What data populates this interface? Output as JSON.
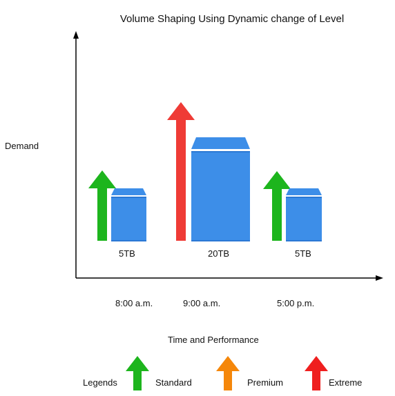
{
  "title": "Volume Shaping Using Dynamic change of Level",
  "y_axis_label": "Demand",
  "x_axis_label": "Time and Performance",
  "groups": [
    {
      "time": "8:00 a.m.",
      "size_label": "5TB",
      "arrow_level": "Standard",
      "arrow_color": "#1db51d"
    },
    {
      "time": "9:00 a.m.",
      "size_label": "20TB",
      "arrow_level": "Extreme",
      "arrow_color": "#ef3b36"
    },
    {
      "time": "5:00 p.m.",
      "size_label": "5TB",
      "arrow_level": "Standard",
      "arrow_color": "#1db51d"
    }
  ],
  "legend": {
    "title": "Legends",
    "items": [
      {
        "label": "Standard",
        "color": "#1db51d"
      },
      {
        "label": "Premium",
        "color": "#f5870a"
      },
      {
        "label": "Extreme",
        "color": "#ef1f1f"
      }
    ]
  },
  "colors": {
    "volume_body": "#3d8ee8",
    "volume_cap": "#2b78d4",
    "axis": "#000000"
  }
}
